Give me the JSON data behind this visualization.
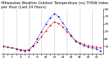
{
  "title": "Milwaukee Weather Outdoor Temperature (vs) THSW Index per Hour (Last 24 Hours)",
  "hours": [
    0,
    1,
    2,
    3,
    4,
    5,
    6,
    7,
    8,
    9,
    10,
    11,
    12,
    13,
    14,
    15,
    16,
    17,
    18,
    19,
    20,
    21,
    22,
    23
  ],
  "temp": [
    30,
    29,
    28,
    27,
    26,
    25,
    26,
    30,
    36,
    43,
    51,
    58,
    63,
    61,
    56,
    50,
    44,
    38,
    35,
    33,
    31,
    30,
    29,
    28
  ],
  "thsw": [
    30,
    29,
    28,
    27,
    25,
    24,
    25,
    31,
    40,
    50,
    60,
    68,
    74,
    70,
    62,
    53,
    45,
    37,
    34,
    31,
    29,
    28,
    27,
    24
  ],
  "temp_color": "#cc0000",
  "thsw_color": "#0000cc",
  "bg_color": "#ffffff",
  "grid_color": "#888888",
  "ylim_min": 20,
  "ylim_max": 80,
  "yticks": [
    30,
    40,
    50,
    60,
    70,
    80
  ],
  "title_fontsize": 3.8,
  "tick_fontsize": 3.2,
  "line_width": 0.8,
  "marker_size": 1.2,
  "vgrid_positions": [
    0,
    3,
    6,
    9,
    12,
    15,
    18,
    21
  ]
}
